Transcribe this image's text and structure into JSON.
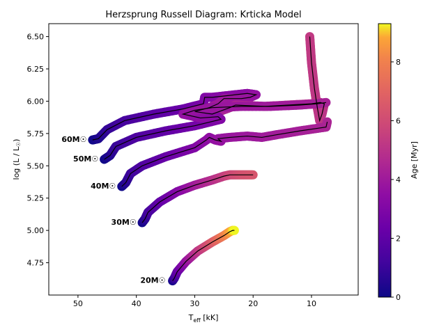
{
  "chart_data": {
    "type": "line",
    "title": "Herzsprung Russell Diagram: Krticka Model",
    "xlabel_main": "T",
    "xlabel_sub": "eff",
    "xlabel_unit": " [kK]",
    "ylabel": "log (L / L",
    "ylabel_sym": "☉",
    "ylabel_close": ")",
    "xlim": [
      55,
      2
    ],
    "ylim": [
      4.5,
      6.6
    ],
    "xticks": [
      50,
      40,
      30,
      20,
      10
    ],
    "yticks": [
      4.75,
      5.0,
      5.25,
      5.5,
      5.75,
      6.0,
      6.25,
      6.5
    ],
    "xtick_labels": [
      "50",
      "40",
      "30",
      "20",
      "10"
    ],
    "ytick_labels": [
      "4.75",
      "5.00",
      "5.25",
      "5.50",
      "5.75",
      "6.00",
      "6.25",
      "6.50"
    ],
    "colorbar": {
      "label": "Age [Myr]",
      "min": 0,
      "max": 9.3,
      "ticks": [
        0,
        2,
        4,
        6,
        8
      ],
      "tick_labels": [
        "0",
        "2",
        "4",
        "6",
        "8"
      ],
      "colormap": "plasma"
    },
    "series": [
      {
        "label": "60M",
        "label_sym": "☉",
        "label_pos": [
          48.5,
          5.7
        ],
        "points": [
          [
            47.5,
            5.7,
            0
          ],
          [
            46.5,
            5.71,
            0.3
          ],
          [
            45,
            5.78,
            0.8
          ],
          [
            42,
            5.85,
            1.3
          ],
          [
            37,
            5.9,
            1.8
          ],
          [
            32,
            5.94,
            2.3
          ],
          [
            28.5,
            5.98,
            2.8
          ],
          [
            28.3,
            6.03,
            3.0
          ],
          [
            27,
            6.03,
            3.1
          ],
          [
            25,
            6.04,
            3.2
          ],
          [
            23,
            6.05,
            3.3
          ],
          [
            21,
            6.06,
            3.4
          ],
          [
            19.5,
            6.05,
            3.6
          ],
          [
            20.5,
            6.03,
            3.7
          ],
          [
            22,
            6.02,
            3.8
          ],
          [
            25,
            6.02,
            3.9
          ],
          [
            26,
            5.98,
            4.0
          ],
          [
            27.5,
            5.95,
            4.1
          ],
          [
            30,
            5.92,
            4.2
          ],
          [
            27,
            5.9,
            4.3
          ],
          [
            24,
            5.95,
            4.4
          ],
          [
            23,
            5.97,
            4.5
          ],
          [
            18,
            5.96,
            4.6
          ],
          [
            14,
            5.97,
            4.7
          ],
          [
            10,
            5.98,
            4.8
          ],
          [
            8.5,
            5.99,
            4.9
          ],
          [
            7.8,
            5.98,
            5.0
          ],
          [
            8.2,
            5.9,
            5.05
          ],
          [
            8.6,
            5.85,
            5.1
          ],
          [
            9.0,
            5.95,
            5.15
          ],
          [
            9.5,
            6.1,
            5.2
          ],
          [
            10,
            6.3,
            5.25
          ],
          [
            10.3,
            6.5,
            5.3
          ]
        ]
      },
      {
        "label": "50M",
        "label_sym": "☉",
        "label_pos": [
          46.5,
          5.55
        ],
        "points": [
          [
            45.5,
            5.55,
            0
          ],
          [
            44.5,
            5.58,
            0.4
          ],
          [
            43.5,
            5.65,
            0.9
          ],
          [
            40,
            5.72,
            1.5
          ],
          [
            35,
            5.77,
            2.0
          ],
          [
            30,
            5.81,
            2.6
          ],
          [
            25.5,
            5.86,
            3.0
          ],
          [
            26,
            5.88,
            3.2
          ],
          [
            29,
            5.87,
            3.4
          ],
          [
            32,
            5.9,
            3.6
          ],
          [
            30,
            5.93,
            3.7
          ],
          [
            27,
            5.95,
            3.8
          ],
          [
            22,
            5.96,
            3.9
          ],
          [
            17,
            5.96,
            4.0
          ],
          [
            12,
            5.97,
            4.1
          ],
          [
            9,
            5.98,
            4.2
          ],
          [
            7.5,
            5.99,
            4.3
          ]
        ]
      },
      {
        "label": "40M",
        "label_sym": "☉",
        "label_pos": [
          43.5,
          5.34
        ],
        "points": [
          [
            42.5,
            5.34,
            0
          ],
          [
            41.8,
            5.37,
            0.5
          ],
          [
            41,
            5.44,
            1.0
          ],
          [
            39,
            5.5,
            1.5
          ],
          [
            35,
            5.57,
            2.2
          ],
          [
            30,
            5.64,
            3.0
          ],
          [
            28,
            5.7,
            3.4
          ],
          [
            27.5,
            5.72,
            3.5
          ],
          [
            26.5,
            5.7,
            3.6
          ],
          [
            25.5,
            5.69,
            3.65
          ],
          [
            26,
            5.71,
            3.7
          ],
          [
            24,
            5.72,
            3.8
          ],
          [
            21,
            5.73,
            3.9
          ],
          [
            18.5,
            5.72,
            4.0
          ],
          [
            16,
            5.74,
            4.1
          ],
          [
            12,
            5.77,
            4.2
          ],
          [
            9,
            5.79,
            4.3
          ],
          [
            7.5,
            5.8,
            4.35
          ],
          [
            7.3,
            5.84,
            4.4
          ]
        ]
      },
      {
        "label": "30M",
        "label_sym": "☉",
        "label_pos": [
          40.0,
          5.06
        ],
        "points": [
          [
            39,
            5.06,
            0
          ],
          [
            38.5,
            5.09,
            0.6
          ],
          [
            38,
            5.14,
            1.2
          ],
          [
            36,
            5.22,
            2.0
          ],
          [
            33,
            5.3,
            3.0
          ],
          [
            30,
            5.35,
            4.0
          ],
          [
            27,
            5.39,
            4.8
          ],
          [
            25,
            5.42,
            5.4
          ],
          [
            24,
            5.43,
            5.8
          ],
          [
            22,
            5.43,
            6.2
          ],
          [
            20,
            5.43,
            6.4
          ]
        ]
      },
      {
        "label": "20M",
        "label_sym": "☉",
        "label_pos": [
          35.0,
          4.61
        ],
        "points": [
          [
            33.8,
            4.61,
            0
          ],
          [
            33.5,
            4.63,
            0.8
          ],
          [
            33,
            4.68,
            2.0
          ],
          [
            31.5,
            4.76,
            3.5
          ],
          [
            29.5,
            4.84,
            5.0
          ],
          [
            27,
            4.91,
            6.5
          ],
          [
            25,
            4.96,
            7.8
          ],
          [
            24,
            4.99,
            8.6
          ],
          [
            23.5,
            5.0,
            9.0
          ],
          [
            23.2,
            5.0,
            9.3
          ]
        ]
      }
    ]
  }
}
